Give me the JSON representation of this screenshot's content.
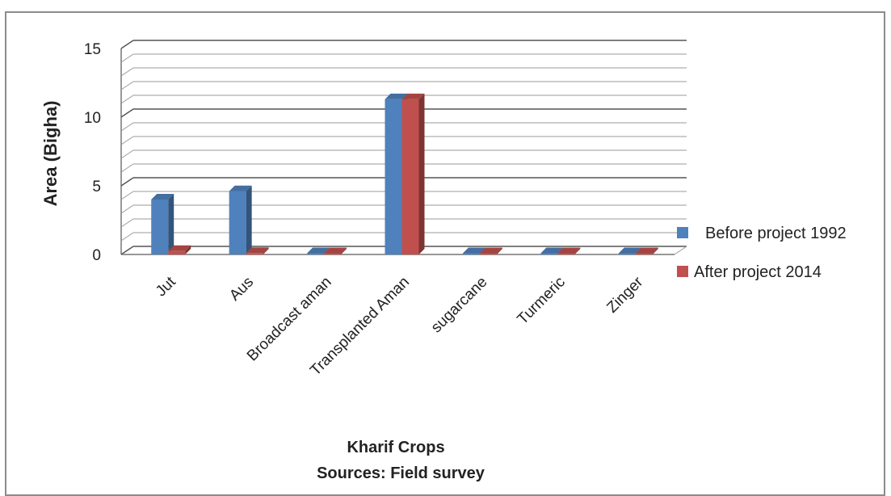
{
  "chart_data": {
    "type": "bar",
    "categories": [
      "Jut",
      "Aus",
      "Broadcast aman",
      "Transplanted Aman",
      "sugarcane",
      "Turmeric",
      "Zinger"
    ],
    "series": [
      {
        "name": "Before project 1992",
        "values": [
          4,
          4.6,
          0,
          11.3,
          0,
          0,
          0
        ],
        "color": "#4f81bd"
      },
      {
        "name": "After project 2014",
        "values": [
          0.25,
          0.1,
          0,
          11.3,
          0,
          0,
          0
        ],
        "color": "#c0504d"
      }
    ],
    "ylabel": "Area (Bigha)",
    "xlabel": "Kharif Crops",
    "source": "Sources: Field survey",
    "ylim": [
      0,
      15
    ],
    "yticks": [
      "0",
      "5",
      "10",
      "15"
    ],
    "grid": true,
    "legend_position": "right"
  }
}
